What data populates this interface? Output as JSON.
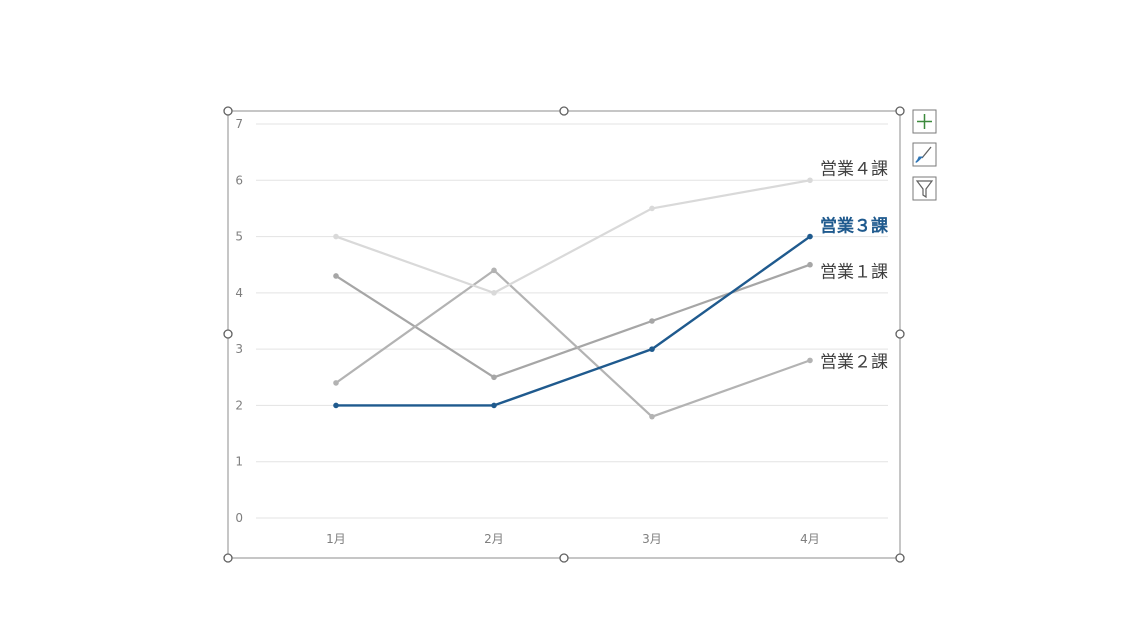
{
  "chart_data": {
    "type": "line",
    "categories": [
      "1月",
      "2月",
      "3月",
      "4月"
    ],
    "series": [
      {
        "name": "営業１課",
        "values": [
          4.3,
          2.5,
          3.5,
          4.5
        ],
        "color": "#a6a6a6",
        "highlight": false
      },
      {
        "name": "営業２課",
        "values": [
          2.4,
          4.4,
          1.8,
          2.8
        ],
        "color": "#b3b3b3",
        "highlight": false
      },
      {
        "name": "営業３課",
        "values": [
          2.0,
          2.0,
          3.0,
          5.0
        ],
        "color": "#1f5a8e",
        "highlight": true
      },
      {
        "name": "営業４課",
        "values": [
          5.0,
          4.0,
          5.5,
          6.0
        ],
        "color": "#d9d9d9",
        "highlight": false
      }
    ],
    "yticks": [
      "0",
      "1",
      "2",
      "3",
      "4",
      "5",
      "6",
      "7"
    ],
    "ylim": [
      0,
      7
    ],
    "grid": true,
    "legend": "none",
    "title": "",
    "xlabel": "",
    "ylabel": ""
  },
  "tools": [
    {
      "name": "chart-elements",
      "icon": "plus-icon"
    },
    {
      "name": "chart-styles",
      "icon": "brush-icon"
    },
    {
      "name": "chart-filters",
      "icon": "funnel-icon"
    }
  ],
  "colors": {
    "accent": "#1f5a8e",
    "label_text": "#404040",
    "tick_text": "#7f7f7f"
  }
}
